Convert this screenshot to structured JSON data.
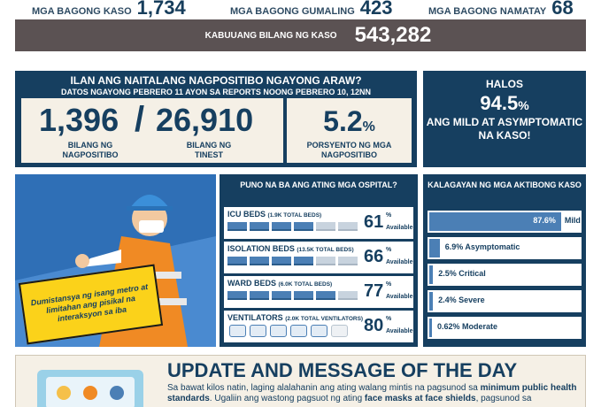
{
  "top_stats": {
    "new_cases_label": "MGA BAGONG KASO",
    "new_cases_value": "1,734",
    "recovered_label": "MGA BAGONG GUMALING",
    "recovered_value": "423",
    "deaths_label": "MGA BAGONG NAMATAY",
    "deaths_value": "68"
  },
  "total": {
    "label": "KABUUANG BILANG NG KASO",
    "value": "543,282"
  },
  "tests": {
    "title": "ILAN ANG NAITALANG NAGPOSITIBO NGAYONG ARAW?",
    "subtitle": "DATOS  NGAYONG  PEBRERO 11 AYON SA REPORTS NOONG  PEBRERO 10, 12NN",
    "positive_value": "1,396",
    "positive_label": "BILANG NG NAGPOSITIBO",
    "slash": "/",
    "tested_value": "26,910",
    "tested_label": "BILANG NG TINEST",
    "rate_value": "5.2",
    "rate_unit": "%",
    "rate_label": "PORSYENTO NG MGA NAGPOSITIBO"
  },
  "mild": {
    "halos": "HALOS",
    "value": "94.5",
    "unit": "%",
    "text": "ANG MILD AT ASYMPTOMATIC NA KASO!"
  },
  "image_panel": {
    "bubble_text": "Dumistansya ng isang metro at limitahan ang pisikal na interaksyon sa iba"
  },
  "hospitals": {
    "title": "PUNO NA BA ANG ATING MGA OSPITAL?",
    "available_label": "Available",
    "percent_sign": "%",
    "rows": [
      {
        "name": "ICU BEDS",
        "sub": "(1.9K TOTAL BEDS)",
        "value": "61",
        "fraction": 0.61
      },
      {
        "name": "ISOLATION BEDS",
        "sub": "(13.5K TOTAL BEDS)",
        "value": "66",
        "fraction": 0.66
      },
      {
        "name": "WARD BEDS",
        "sub": "(6.0K TOTAL BEDS)",
        "value": "77",
        "fraction": 0.77
      },
      {
        "name": "VENTILATORS",
        "sub": "(2.0K TOTAL VENTILATORS)",
        "value": "80",
        "fraction": 0.8
      }
    ]
  },
  "active_cases": {
    "title": "KALAGAYAN NG MGA AKTIBONG KASO",
    "rows": [
      {
        "value": "87.6%",
        "name": "Mild",
        "fraction": 0.876
      },
      {
        "value": "6.9% Asymptomatic",
        "name": "",
        "fraction": 0.069
      },
      {
        "value": "2.5% Critical",
        "name": "",
        "fraction": 0.025
      },
      {
        "value": "2.4% Severe",
        "name": "",
        "fraction": 0.024
      },
      {
        "value": "0.62% Moderate",
        "name": "",
        "fraction": 0.0062
      }
    ]
  },
  "update": {
    "title": "UPDATE AND MESSAGE OF THE DAY",
    "line1_a": "Sa bawat kilos natin, laging alalahanin ang ating walang mintis na pagsunod sa ",
    "line1_b": "minimum public health standards",
    "line2_a": ". Ugaliin ang wastong pagsuot ng ating ",
    "line2_b": "face masks at face shields",
    "line2_c": ", pagsunod sa"
  },
  "colors": {
    "navy": "#163f60",
    "accent_blue": "#4b7fb5",
    "cream": "#f5f0e6",
    "total_bar": "#5b5253"
  }
}
